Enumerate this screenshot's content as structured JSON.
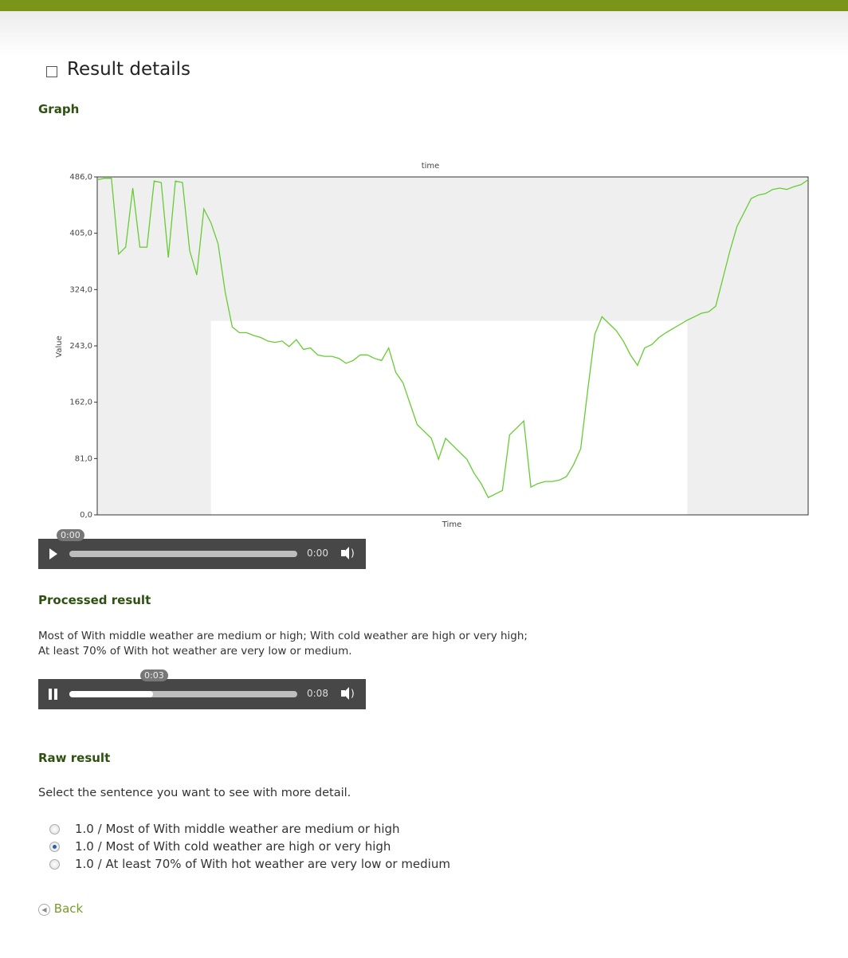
{
  "header": {
    "title": "Result details"
  },
  "sections": {
    "graph": "Graph",
    "processed": "Processed result",
    "raw": "Raw result"
  },
  "chart_data": {
    "type": "line",
    "title": "time",
    "x_label": "Time",
    "y_label": "Value",
    "color": "#66cc33",
    "shade_color": "#efefef",
    "shade_above": 279,
    "shade_ranges": [
      [
        0,
        16
      ],
      [
        83,
        100
      ]
    ],
    "values": [
      482,
      484,
      484,
      375,
      385,
      470,
      385,
      385,
      480,
      478,
      370,
      480,
      478,
      380,
      345,
      440,
      420,
      390,
      320,
      270,
      262,
      262,
      258,
      255,
      250,
      248,
      250,
      242,
      252,
      238,
      240,
      230,
      228,
      228,
      225,
      218,
      222,
      230,
      230,
      225,
      222,
      240,
      205,
      190,
      160,
      130,
      120,
      110,
      80,
      110,
      100,
      90,
      80,
      60,
      45,
      25,
      30,
      35,
      115,
      125,
      135,
      40,
      45,
      48,
      48,
      50,
      55,
      72,
      95,
      180,
      260,
      285,
      275,
      265,
      250,
      230,
      215,
      240,
      245,
      255,
      262,
      268,
      274,
      280,
      285,
      290,
      292,
      300,
      340,
      380,
      415,
      435,
      455,
      460,
      462,
      468,
      470,
      468,
      472,
      475,
      482
    ],
    "ylim": [
      0,
      486
    ],
    "yticks": [
      {
        "value": 0,
        "label": "0,0"
      },
      {
        "value": 81,
        "label": "81,0"
      },
      {
        "value": 162,
        "label": "162,0"
      },
      {
        "value": 243,
        "label": "243,0"
      },
      {
        "value": 324,
        "label": "324,0"
      },
      {
        "value": 405,
        "label": "405,0"
      },
      {
        "value": 486,
        "label": "486,0"
      }
    ]
  },
  "players": [
    {
      "tooltip": "0:00",
      "time": "0:00",
      "playing": false
    },
    {
      "tooltip": "0:03",
      "time": "0:08",
      "playing": true
    }
  ],
  "processed_text": [
    "Most of With middle weather are medium or high; With cold weather are high or very high;",
    "At least 70% of With hot weather are very low or medium."
  ],
  "raw": {
    "instruction": "Select the sentence you want to see with more detail.",
    "options": [
      "1.0 / Most of With middle weather are medium or high",
      "1.0 / Most of With cold weather are high or very high",
      "1.0 / At least 70% of With hot weather are very low or medium"
    ],
    "selected": 1
  },
  "back": "Back"
}
